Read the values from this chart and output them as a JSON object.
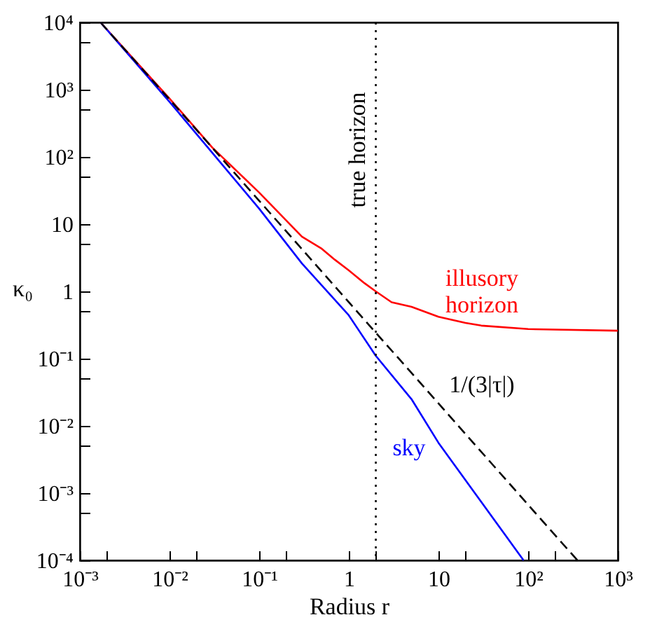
{
  "chart_data": {
    "type": "line",
    "xlabel": "Radius r",
    "ylabel": "κ₀",
    "log": "xy",
    "xlim": [
      0.001,
      1000
    ],
    "ylim": [
      0.0001,
      10000
    ],
    "xticks": [
      {
        "value": 0.001,
        "label": "10⁻³"
      },
      {
        "value": 0.002,
        "label": null
      },
      {
        "value": 0.01,
        "label": "10⁻²"
      },
      {
        "value": 0.02,
        "label": null
      },
      {
        "value": 0.1,
        "label": "10⁻¹"
      },
      {
        "value": 0.2,
        "label": null
      },
      1,
      {
        "value": 2,
        "label": null
      },
      10,
      {
        "value": 20,
        "label": null
      },
      {
        "value": 100,
        "label": "10²"
      },
      {
        "value": 200,
        "label": null
      },
      {
        "value": 1000,
        "label": "10³"
      }
    ],
    "yticks": [
      {
        "value": 0.0001,
        "label": "10⁻⁴"
      },
      {
        "value": 0.0005,
        "label": null
      },
      {
        "value": 0.001,
        "label": "10⁻³"
      },
      {
        "value": 0.005,
        "label": null
      },
      {
        "value": 0.01,
        "label": "10⁻²"
      },
      {
        "value": 0.05,
        "label": null
      },
      {
        "value": 0.1,
        "label": "10⁻¹"
      },
      {
        "value": 0.5,
        "label": null
      },
      1,
      {
        "value": 5,
        "label": null
      },
      10,
      {
        "value": 50,
        "label": null
      },
      {
        "value": 100,
        "label": "10²"
      },
      {
        "value": 500,
        "label": null
      },
      {
        "value": 1000,
        "label": "10³"
      },
      {
        "value": 5000,
        "label": null
      },
      {
        "value": 10000,
        "label": "10⁴"
      }
    ],
    "grid": false,
    "legend": false,
    "series": [
      {
        "name": "illusory horizon",
        "color": "#ff0000",
        "x": [
          0.0017,
          0.01,
          0.03,
          0.1,
          0.3,
          0.5,
          0.7,
          1,
          1.5,
          2,
          3,
          5,
          10,
          20,
          30,
          100,
          1000
        ],
        "values": [
          10000,
          740,
          138,
          29.5,
          6.5,
          4.3,
          2.95,
          2.05,
          1.32,
          1.0,
          0.69,
          0.59,
          0.42,
          0.34,
          0.31,
          0.275,
          0.26
        ]
      },
      {
        "name": "sky",
        "color": "#0000ff",
        "x": [
          0.0017,
          0.01,
          0.1,
          0.3,
          1,
          2,
          5,
          10,
          89
        ],
        "values": [
          10000,
          660,
          17,
          2.6,
          0.44,
          0.11,
          0.025,
          0.0056,
          0.0001
        ]
      },
      {
        "name": "1/(3|τ|)",
        "color": "#000000",
        "line_style": "dashed",
        "x": [
          0.0017,
          0.01,
          0.1,
          1,
          10,
          100,
          355
        ],
        "values": [
          10000,
          716,
          22.3,
          0.69,
          0.0216,
          0.00067,
          0.0001
        ]
      }
    ],
    "ref_lines": [
      {
        "axis": "x",
        "value": 2,
        "label": "true horizon",
        "color": "#000000",
        "line_style": "dotted"
      }
    ]
  }
}
